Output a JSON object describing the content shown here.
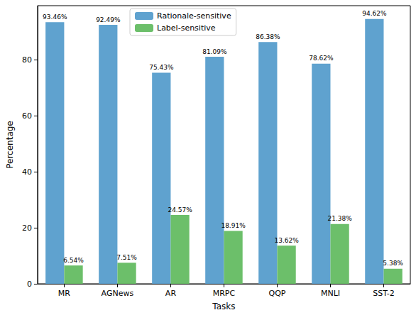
{
  "chart_data": {
    "type": "bar",
    "x_label": "Tasks",
    "y_label": "Percentage",
    "categories": [
      "MR",
      "AGNews",
      "AR",
      "MRPC",
      "QQP",
      "MNLI",
      "SST-2"
    ],
    "series": [
      {
        "name": "Rationale-sensitive",
        "color": "#5fa2cf",
        "values": [
          93.46,
          92.49,
          75.43,
          81.09,
          86.38,
          78.62,
          94.62
        ],
        "value_labels": [
          "93.46%",
          "92.49%",
          "75.43%",
          "81.09%",
          "86.38%",
          "78.62%",
          "94.62%"
        ]
      },
      {
        "name": "Label-sensitive",
        "color": "#6cbf6a",
        "values": [
          6.54,
          7.51,
          24.57,
          18.91,
          13.62,
          21.38,
          5.38
        ],
        "value_labels": [
          "6.54%",
          "7.51%",
          "24.57%",
          "18.91%",
          "13.62%",
          "21.38%",
          "5.38%"
        ]
      }
    ],
    "ylim": [
      0,
      99.35
    ],
    "yticks": [
      0,
      20,
      40,
      60,
      80
    ],
    "grid": false,
    "legend": "top",
    "data_labels": true
  }
}
